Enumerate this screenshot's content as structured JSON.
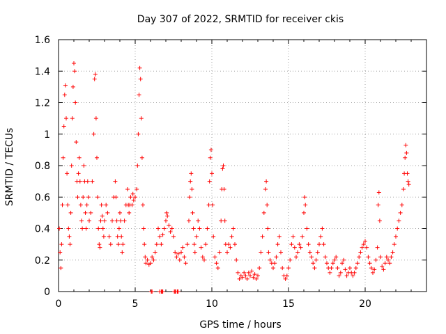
{
  "chart_data": {
    "type": "scatter",
    "title": "Day 307 of 2022, SRMTID for receiver ckis",
    "xlabel": "GPS time / hours",
    "ylabel": "SRMTID / TECUs",
    "xlim": [
      0,
      24
    ],
    "ylim": [
      0,
      1.6
    ],
    "xticks": [
      0,
      5,
      10,
      15,
      20
    ],
    "xtick_labels": [
      "0",
      "5",
      "10",
      "15",
      "20"
    ],
    "yticks": [
      0,
      0.2,
      0.4,
      0.6,
      0.8,
      1.0,
      1.2,
      1.4,
      1.6
    ],
    "ytick_labels": [
      "0",
      "0.2",
      "0.4",
      "0.6",
      "0.8",
      "1",
      "1.2",
      "1.4",
      "1.6"
    ],
    "grid": true,
    "marker": "plus",
    "color": "#ff0000",
    "series": [
      {
        "name": "SRMTID",
        "points": [
          [
            0.05,
            0.4
          ],
          [
            0.1,
            0.25
          ],
          [
            0.15,
            0.15
          ],
          [
            0.2,
            0.3
          ],
          [
            0.25,
            0.55
          ],
          [
            0.3,
            0.85
          ],
          [
            0.35,
            1.05
          ],
          [
            0.4,
            1.25
          ],
          [
            0.45,
            1.31
          ],
          [
            0.5,
            1.1
          ],
          [
            0.55,
            0.75
          ],
          [
            0.6,
            0.55
          ],
          [
            0.65,
            0.4
          ],
          [
            0.7,
            0.35
          ],
          [
            0.75,
            0.3
          ],
          [
            0.8,
            0.5
          ],
          [
            0.85,
            0.8
          ],
          [
            0.9,
            1.1
          ],
          [
            0.95,
            1.3
          ],
          [
            1.0,
            1.45
          ],
          [
            1.05,
            1.4
          ],
          [
            1.1,
            1.2
          ],
          [
            1.15,
            0.95
          ],
          [
            1.2,
            0.7
          ],
          [
            1.25,
            0.6
          ],
          [
            1.3,
            0.75
          ],
          [
            1.35,
            0.85
          ],
          [
            1.4,
            0.7
          ],
          [
            1.45,
            0.55
          ],
          [
            1.5,
            0.45
          ],
          [
            1.55,
            0.4
          ],
          [
            1.6,
            0.6
          ],
          [
            1.65,
            0.8
          ],
          [
            1.7,
            0.7
          ],
          [
            1.75,
            0.5
          ],
          [
            1.8,
            0.4
          ],
          [
            1.85,
            0.55
          ],
          [
            1.9,
            0.7
          ],
          [
            1.95,
            0.6
          ],
          [
            2.0,
            0.45
          ],
          [
            2.1,
            0.5
          ],
          [
            2.2,
            0.7
          ],
          [
            2.3,
            1.0
          ],
          [
            2.35,
            1.35
          ],
          [
            2.4,
            1.38
          ],
          [
            2.45,
            1.1
          ],
          [
            2.5,
            0.85
          ],
          [
            2.55,
            0.6
          ],
          [
            2.6,
            0.4
          ],
          [
            2.65,
            0.3
          ],
          [
            2.7,
            0.28
          ],
          [
            2.75,
            0.45
          ],
          [
            2.8,
            0.55
          ],
          [
            2.85,
            0.48
          ],
          [
            2.9,
            0.4
          ],
          [
            2.95,
            0.35
          ],
          [
            3.0,
            0.45
          ],
          [
            3.1,
            0.55
          ],
          [
            3.2,
            0.5
          ],
          [
            3.3,
            0.35
          ],
          [
            3.4,
            0.3
          ],
          [
            3.5,
            0.45
          ],
          [
            3.6,
            0.6
          ],
          [
            3.7,
            0.7
          ],
          [
            3.75,
            0.6
          ],
          [
            3.8,
            0.45
          ],
          [
            3.85,
            0.35
          ],
          [
            3.9,
            0.3
          ],
          [
            3.95,
            0.4
          ],
          [
            4.0,
            0.5
          ],
          [
            4.05,
            0.45
          ],
          [
            4.1,
            0.35
          ],
          [
            4.15,
            0.25
          ],
          [
            4.2,
            0.3
          ],
          [
            4.3,
            0.45
          ],
          [
            4.4,
            0.55
          ],
          [
            4.5,
            0.65
          ],
          [
            4.55,
            0.55
          ],
          [
            4.6,
            0.5
          ],
          [
            4.65,
            0.55
          ],
          [
            4.7,
            0.6
          ],
          [
            4.8,
            0.55
          ],
          [
            4.85,
            0.62
          ],
          [
            4.9,
            0.58
          ],
          [
            5.0,
            0.6
          ],
          [
            5.1,
            0.65
          ],
          [
            5.15,
            0.8
          ],
          [
            5.2,
            1.0
          ],
          [
            5.25,
            1.25
          ],
          [
            5.3,
            1.42
          ],
          [
            5.35,
            1.35
          ],
          [
            5.4,
            1.1
          ],
          [
            5.45,
            0.85
          ],
          [
            5.5,
            0.55
          ],
          [
            5.55,
            0.4
          ],
          [
            5.6,
            0.3
          ],
          [
            5.65,
            0.22
          ],
          [
            5.7,
            0.18
          ],
          [
            5.8,
            0.2
          ],
          [
            5.9,
            0.17
          ],
          [
            6.0,
            0.18
          ],
          [
            6.1,
            0.22
          ],
          [
            6.2,
            0.2
          ],
          [
            6.3,
            0.25
          ],
          [
            6.4,
            0.3
          ],
          [
            6.5,
            0.4
          ],
          [
            6.6,
            0.35
          ],
          [
            6.7,
            0.3
          ],
          [
            6.8,
            0.36
          ],
          [
            6.9,
            0.4
          ],
          [
            7.0,
            0.45
          ],
          [
            7.05,
            0.5
          ],
          [
            7.1,
            0.48
          ],
          [
            7.2,
            0.42
          ],
          [
            7.3,
            0.38
          ],
          [
            7.4,
            0.4
          ],
          [
            7.5,
            0.35
          ],
          [
            7.6,
            0.25
          ],
          [
            7.7,
            0.22
          ],
          [
            7.8,
            0.24
          ],
          [
            7.9,
            0.2
          ],
          [
            8.0,
            0.25
          ],
          [
            8.1,
            0.28
          ],
          [
            8.2,
            0.22
          ],
          [
            8.3,
            0.18
          ],
          [
            8.4,
            0.3
          ],
          [
            8.5,
            0.45
          ],
          [
            8.55,
            0.6
          ],
          [
            8.6,
            0.7
          ],
          [
            8.65,
            0.75
          ],
          [
            8.7,
            0.65
          ],
          [
            8.75,
            0.5
          ],
          [
            8.8,
            0.4
          ],
          [
            8.85,
            0.3
          ],
          [
            8.9,
            0.25
          ],
          [
            9.0,
            0.35
          ],
          [
            9.1,
            0.45
          ],
          [
            9.2,
            0.4
          ],
          [
            9.3,
            0.28
          ],
          [
            9.4,
            0.22
          ],
          [
            9.5,
            0.2
          ],
          [
            9.6,
            0.3
          ],
          [
            9.7,
            0.4
          ],
          [
            9.8,
            0.55
          ],
          [
            9.85,
            0.7
          ],
          [
            9.9,
            0.85
          ],
          [
            9.95,
            0.9
          ],
          [
            10.0,
            0.75
          ],
          [
            10.05,
            0.55
          ],
          [
            10.1,
            0.35
          ],
          [
            10.2,
            0.22
          ],
          [
            10.3,
            0.18
          ],
          [
            10.4,
            0.15
          ],
          [
            10.5,
            0.25
          ],
          [
            10.6,
            0.45
          ],
          [
            10.65,
            0.65
          ],
          [
            10.7,
            0.78
          ],
          [
            10.75,
            0.8
          ],
          [
            10.8,
            0.65
          ],
          [
            10.85,
            0.45
          ],
          [
            10.9,
            0.3
          ],
          [
            11.0,
            0.25
          ],
          [
            11.1,
            0.3
          ],
          [
            11.2,
            0.28
          ],
          [
            11.3,
            0.35
          ],
          [
            11.4,
            0.4
          ],
          [
            11.5,
            0.3
          ],
          [
            11.6,
            0.2
          ],
          [
            11.7,
            0.12
          ],
          [
            11.8,
            0.08
          ],
          [
            11.9,
            0.1
          ],
          [
            12.0,
            0.09
          ],
          [
            12.1,
            0.12
          ],
          [
            12.2,
            0.1
          ],
          [
            12.3,
            0.08
          ],
          [
            12.4,
            0.12
          ],
          [
            12.5,
            0.1
          ],
          [
            12.6,
            0.13
          ],
          [
            12.7,
            0.09
          ],
          [
            12.8,
            0.11
          ],
          [
            12.9,
            0.08
          ],
          [
            13.0,
            0.1
          ],
          [
            13.1,
            0.15
          ],
          [
            13.2,
            0.25
          ],
          [
            13.3,
            0.35
          ],
          [
            13.4,
            0.5
          ],
          [
            13.5,
            0.65
          ],
          [
            13.55,
            0.7
          ],
          [
            13.6,
            0.55
          ],
          [
            13.65,
            0.4
          ],
          [
            13.7,
            0.25
          ],
          [
            13.8,
            0.2
          ],
          [
            13.9,
            0.18
          ],
          [
            14.0,
            0.15
          ],
          [
            14.1,
            0.18
          ],
          [
            14.2,
            0.22
          ],
          [
            14.3,
            0.3
          ],
          [
            14.4,
            0.35
          ],
          [
            14.5,
            0.25
          ],
          [
            14.6,
            0.15
          ],
          [
            14.7,
            0.1
          ],
          [
            14.8,
            0.08
          ],
          [
            14.9,
            0.1
          ],
          [
            15.0,
            0.15
          ],
          [
            15.1,
            0.2
          ],
          [
            15.2,
            0.3
          ],
          [
            15.3,
            0.35
          ],
          [
            15.4,
            0.28
          ],
          [
            15.5,
            0.22
          ],
          [
            15.6,
            0.25
          ],
          [
            15.7,
            0.3
          ],
          [
            15.8,
            0.28
          ],
          [
            15.9,
            0.35
          ],
          [
            16.0,
            0.5
          ],
          [
            16.05,
            0.6
          ],
          [
            16.1,
            0.55
          ],
          [
            16.2,
            0.4
          ],
          [
            16.3,
            0.3
          ],
          [
            16.4,
            0.25
          ],
          [
            16.5,
            0.22
          ],
          [
            16.6,
            0.18
          ],
          [
            16.7,
            0.15
          ],
          [
            16.8,
            0.2
          ],
          [
            16.9,
            0.25
          ],
          [
            17.0,
            0.3
          ],
          [
            17.1,
            0.35
          ],
          [
            17.2,
            0.4
          ],
          [
            17.3,
            0.3
          ],
          [
            17.4,
            0.22
          ],
          [
            17.5,
            0.18
          ],
          [
            17.6,
            0.15
          ],
          [
            17.7,
            0.12
          ],
          [
            17.8,
            0.15
          ],
          [
            17.9,
            0.18
          ],
          [
            18.0,
            0.2
          ],
          [
            18.1,
            0.22
          ],
          [
            18.2,
            0.15
          ],
          [
            18.3,
            0.1
          ],
          [
            18.4,
            0.12
          ],
          [
            18.5,
            0.18
          ],
          [
            18.6,
            0.2
          ],
          [
            18.7,
            0.14
          ],
          [
            18.8,
            0.1
          ],
          [
            18.9,
            0.12
          ],
          [
            19.0,
            0.15
          ],
          [
            19.1,
            0.12
          ],
          [
            19.2,
            0.1
          ],
          [
            19.3,
            0.12
          ],
          [
            19.4,
            0.15
          ],
          [
            19.5,
            0.18
          ],
          [
            19.6,
            0.22
          ],
          [
            19.7,
            0.25
          ],
          [
            19.8,
            0.28
          ],
          [
            19.9,
            0.3
          ],
          [
            20.0,
            0.32
          ],
          [
            20.1,
            0.28
          ],
          [
            20.2,
            0.22
          ],
          [
            20.3,
            0.18
          ],
          [
            20.4,
            0.15
          ],
          [
            20.5,
            0.12
          ],
          [
            20.6,
            0.14
          ],
          [
            20.7,
            0.2
          ],
          [
            20.8,
            0.28
          ],
          [
            20.85,
            0.55
          ],
          [
            20.9,
            0.63
          ],
          [
            20.95,
            0.45
          ],
          [
            21.0,
            0.22
          ],
          [
            21.1,
            0.16
          ],
          [
            21.2,
            0.14
          ],
          [
            21.3,
            0.18
          ],
          [
            21.4,
            0.22
          ],
          [
            21.5,
            0.2
          ],
          [
            21.6,
            0.18
          ],
          [
            21.7,
            0.22
          ],
          [
            21.8,
            0.25
          ],
          [
            21.9,
            0.3
          ],
          [
            22.0,
            0.35
          ],
          [
            22.1,
            0.4
          ],
          [
            22.2,
            0.45
          ],
          [
            22.3,
            0.5
          ],
          [
            22.4,
            0.55
          ],
          [
            22.5,
            0.65
          ],
          [
            22.55,
            0.75
          ],
          [
            22.6,
            0.85
          ],
          [
            22.65,
            0.93
          ],
          [
            22.7,
            0.88
          ],
          [
            22.75,
            0.75
          ],
          [
            22.8,
            0.7
          ],
          [
            22.85,
            0.68
          ],
          [
            6.05,
            0.0
          ],
          [
            6.1,
            0.0
          ],
          [
            6.6,
            0.0
          ],
          [
            6.7,
            0.0
          ],
          [
            6.75,
            0.0
          ],
          [
            6.8,
            0.0
          ],
          [
            7.55,
            0.0
          ],
          [
            7.6,
            0.0
          ],
          [
            7.65,
            0.0
          ],
          [
            7.75,
            0.0
          ],
          [
            7.8,
            0.0
          ]
        ]
      }
    ]
  }
}
